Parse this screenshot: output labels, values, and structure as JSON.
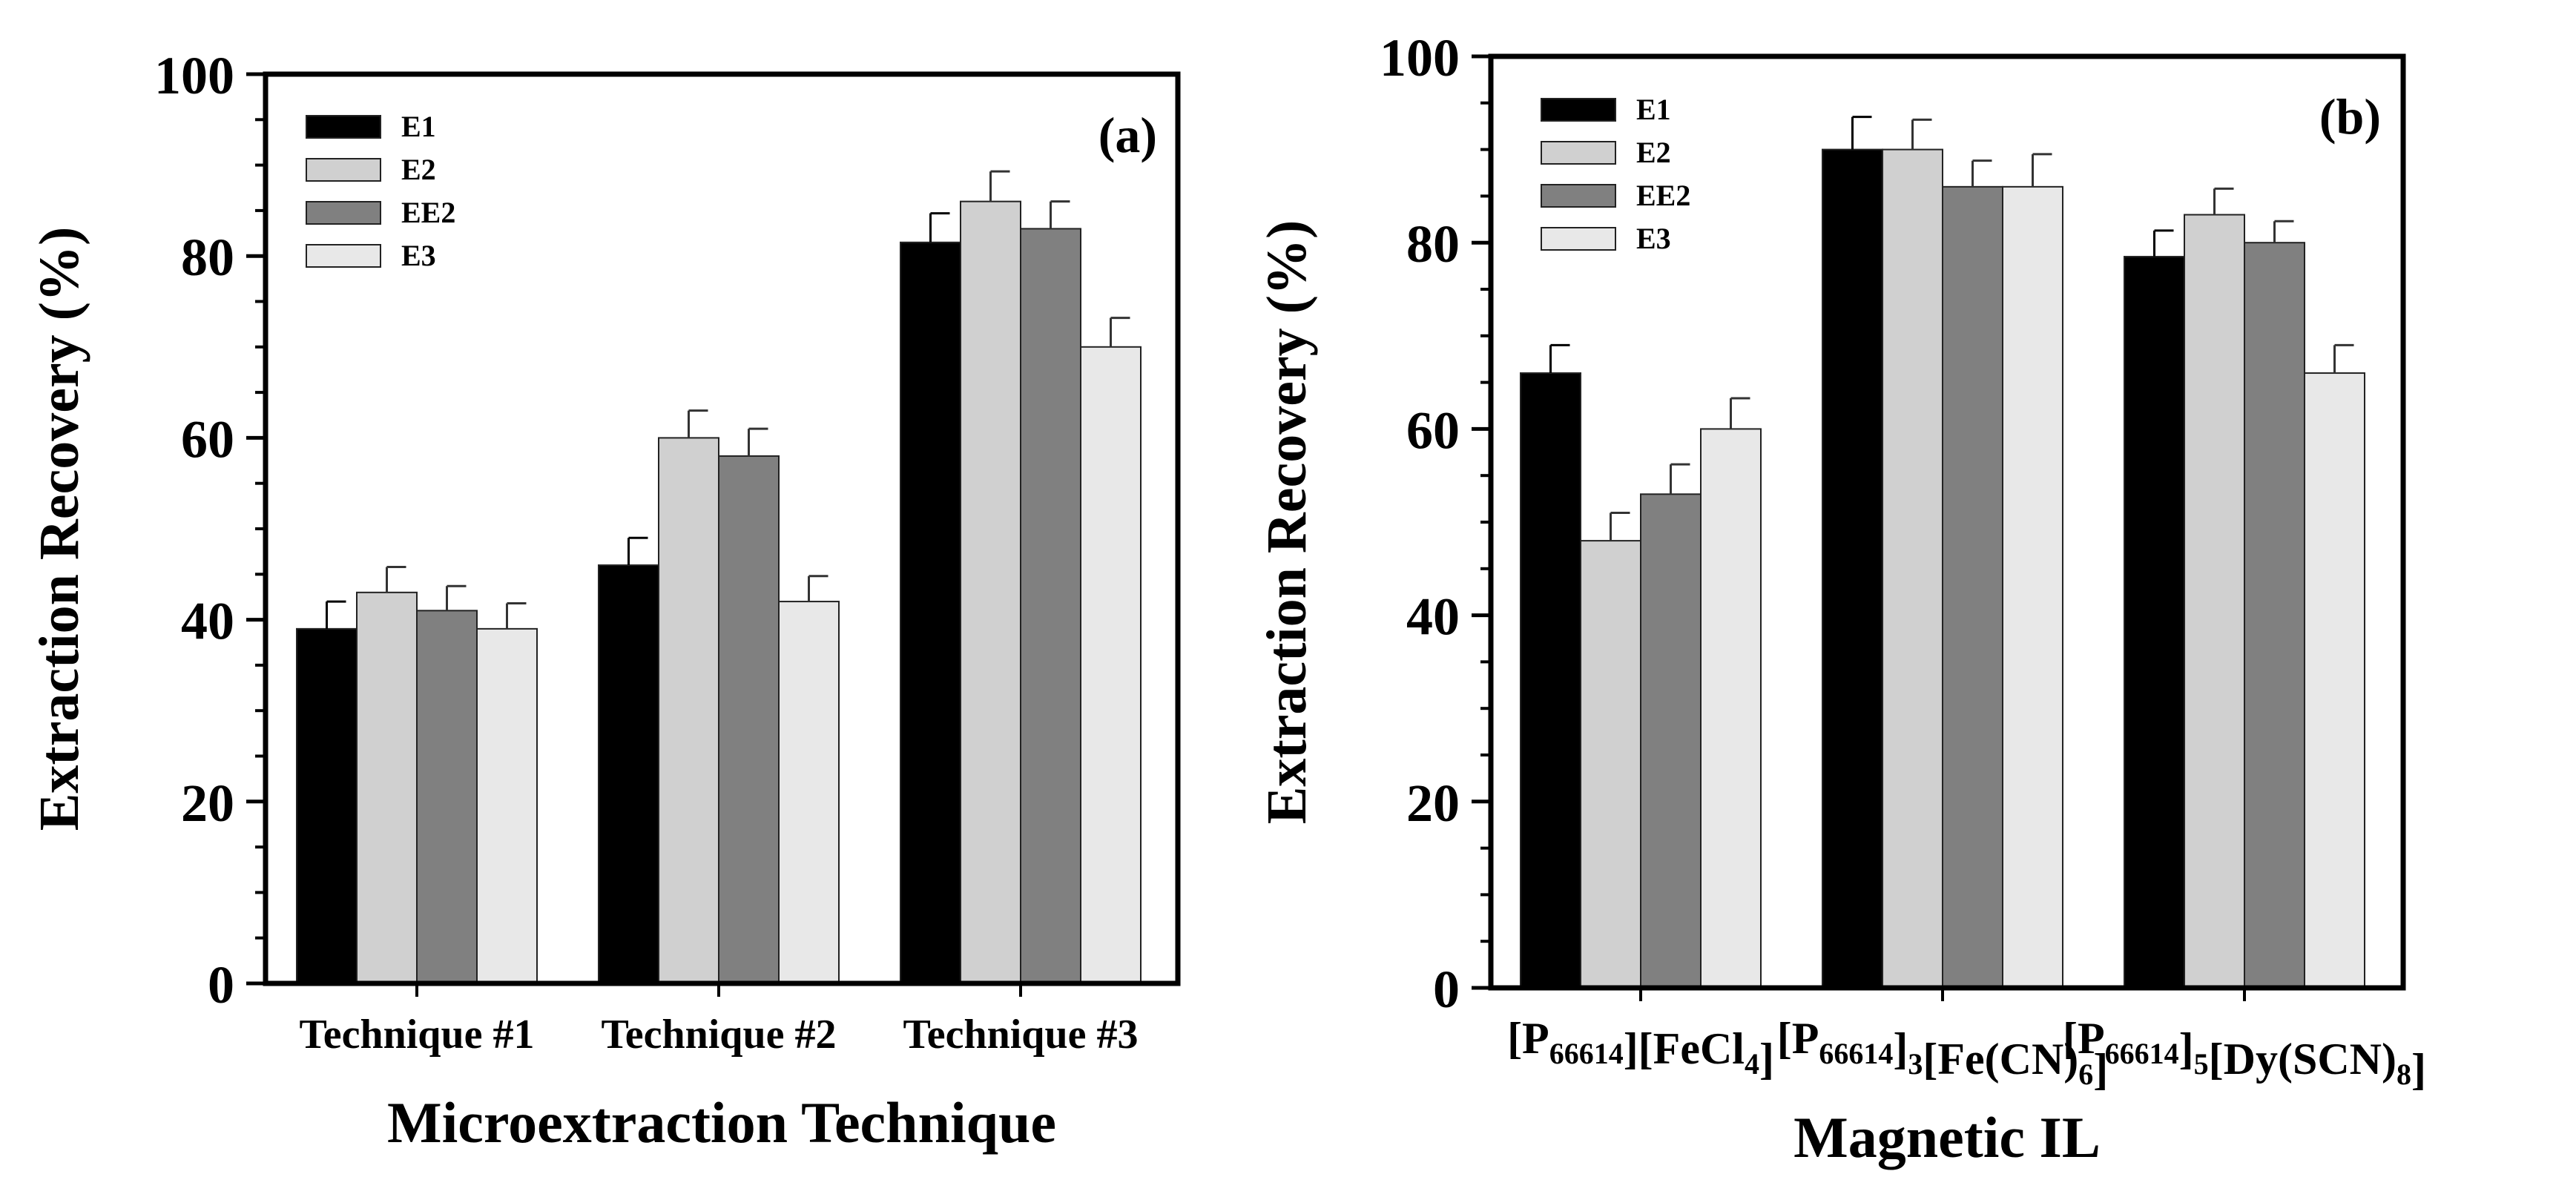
{
  "chart_data": [
    {
      "type": "bar",
      "panel_label": "(a)",
      "xlabel": "Microextraction Technique",
      "ylabel": "Extraction Recovery (%)",
      "ylim": [
        0,
        100
      ],
      "yticks": [
        "0",
        "20",
        "40",
        "60",
        "80",
        "100"
      ],
      "grid": false,
      "legend_position": "top-left",
      "categories": [
        {
          "label": "Technique #1"
        },
        {
          "label": "Technique #2"
        },
        {
          "label": "Technique #3"
        }
      ],
      "series": [
        {
          "name": "E1",
          "color": "#000000",
          "values": [
            39,
            46,
            81.5
          ],
          "errors": [
            3,
            3,
            3.2
          ]
        },
        {
          "name": "E2",
          "color": "#d0d0d0",
          "values": [
            43,
            60,
            86
          ],
          "errors": [
            2.8,
            3,
            3.3
          ]
        },
        {
          "name": "EE2",
          "color": "#808080",
          "values": [
            41,
            58,
            83
          ],
          "errors": [
            2.7,
            3,
            3
          ]
        },
        {
          "name": "E3",
          "color": "#e8e8e8",
          "values": [
            39,
            42,
            70
          ],
          "errors": [
            2.8,
            2.8,
            3.2
          ]
        }
      ]
    },
    {
      "type": "bar",
      "panel_label": "(b)",
      "xlabel": "Magnetic IL",
      "ylabel": "Extraction Recovery (%)",
      "ylim": [
        0,
        100
      ],
      "yticks": [
        "0",
        "20",
        "40",
        "60",
        "80",
        "100"
      ],
      "grid": false,
      "legend_position": "top-left",
      "categories": [
        {
          "label": "[P66614][FeCl4]",
          "parts": [
            {
              "t": "[P"
            },
            {
              "t": "66614",
              "sub": true
            },
            {
              "t": "][FeCl"
            },
            {
              "t": "4",
              "sub": true
            },
            {
              "t": "]"
            }
          ]
        },
        {
          "label": "[P66614]3[Fe(CN)6]",
          "parts": [
            {
              "t": "[P"
            },
            {
              "t": "66614",
              "sub": true
            },
            {
              "t": "]"
            },
            {
              "t": "3",
              "sub": true
            },
            {
              "t": "[Fe(CN)"
            },
            {
              "t": "6",
              "sub": true
            },
            {
              "t": "]"
            }
          ]
        },
        {
          "label": "[P66614]5[Dy(SCN)8]",
          "parts": [
            {
              "t": "[P"
            },
            {
              "t": "66614",
              "sub": true
            },
            {
              "t": "]"
            },
            {
              "t": "5",
              "sub": true
            },
            {
              "t": "[Dy(SCN)"
            },
            {
              "t": "8",
              "sub": true
            },
            {
              "t": "]"
            }
          ]
        }
      ],
      "series": [
        {
          "name": "E1",
          "color": "#000000",
          "values": [
            66,
            90,
            78.5
          ],
          "errors": [
            3,
            3.5,
            2.8
          ]
        },
        {
          "name": "E2",
          "color": "#d0d0d0",
          "values": [
            48,
            90,
            83
          ],
          "errors": [
            3,
            3.2,
            2.8
          ]
        },
        {
          "name": "EE2",
          "color": "#808080",
          "values": [
            53,
            86,
            80
          ],
          "errors": [
            3.2,
            2.8,
            2.3
          ]
        },
        {
          "name": "E3",
          "color": "#e8e8e8",
          "values": [
            60,
            86,
            66
          ],
          "errors": [
            3.3,
            3.5,
            3
          ]
        }
      ]
    }
  ]
}
